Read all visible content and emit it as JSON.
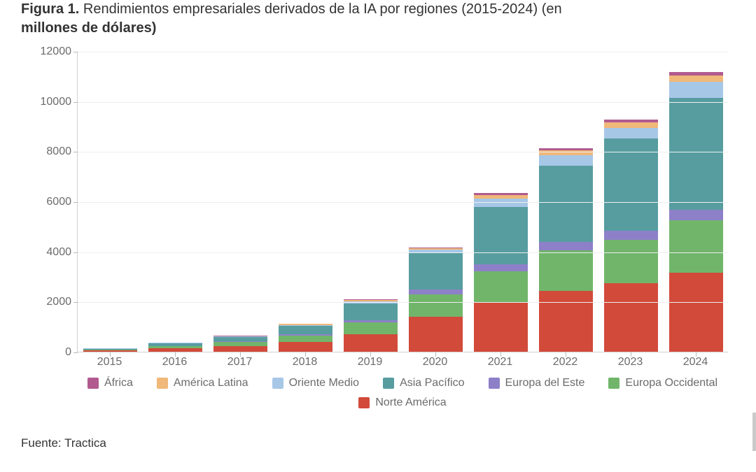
{
  "figure": {
    "label_bold": "Figura 1.",
    "title_partial_top": "Rendimientos empresariales derivados de la IA por regiones (2015-2024) (en",
    "title_partial_bottom": "millones de dólares)",
    "source_label": "Fuente: Tractica"
  },
  "chart": {
    "type": "stacked-bar",
    "background_color": "#ffffff",
    "grid_color": "#eeeeee",
    "axis_color": "#d0d0d0",
    "tick_color": "#b8b8b8",
    "label_color": "#6b6b6b",
    "label_fontsize": 16,
    "ylim": [
      0,
      12000
    ],
    "ytick_step": 2000,
    "yticks": [
      0,
      2000,
      4000,
      6000,
      8000,
      10000,
      12000
    ],
    "categories": [
      "2015",
      "2016",
      "2017",
      "2018",
      "2019",
      "2020",
      "2021",
      "2022",
      "2023",
      "2024"
    ],
    "bar_width_ratio": 0.82,
    "series": [
      {
        "key": "norte_america",
        "label": "Norte América",
        "color": "#d24a3a"
      },
      {
        "key": "europa_occidental",
        "label": "Europa Occidental",
        "color": "#71b56b"
      },
      {
        "key": "europa_del_este",
        "label": "Europa del Este",
        "color": "#8d80c9"
      },
      {
        "key": "asia_pacifico",
        "label": "Asia Pacífico",
        "color": "#579da0"
      },
      {
        "key": "oriente_medio",
        "label": "Oriente Medio",
        "color": "#a7c7e7"
      },
      {
        "key": "america_latina",
        "label": "América Latina",
        "color": "#f0b879"
      },
      {
        "key": "africa",
        "label": "África",
        "color": "#b25a8f"
      }
    ],
    "legend_order": [
      "africa",
      "america_latina",
      "oriente_medio",
      "asia_pacifico",
      "europa_del_este",
      "europa_occidental",
      "norte_america"
    ],
    "values": {
      "norte_america": [
        50,
        130,
        230,
        380,
        700,
        1400,
        1950,
        2420,
        2730,
        3150
      ],
      "europa_occidental": [
        30,
        90,
        150,
        270,
        480,
        900,
        1250,
        1620,
        1730,
        2100
      ],
      "europa_del_este": [
        5,
        15,
        30,
        50,
        90,
        180,
        280,
        330,
        360,
        420
      ],
      "asia_pacifico": [
        40,
        100,
        170,
        330,
        660,
        1450,
        2300,
        3050,
        3700,
        4450
      ],
      "oriente_medio": [
        5,
        15,
        25,
        45,
        80,
        140,
        330,
        430,
        420,
        650
      ],
      "america_latina": [
        4,
        10,
        18,
        30,
        55,
        60,
        140,
        180,
        210,
        250
      ],
      "africa": [
        3,
        8,
        12,
        20,
        35,
        40,
        80,
        90,
        110,
        130
      ]
    }
  }
}
